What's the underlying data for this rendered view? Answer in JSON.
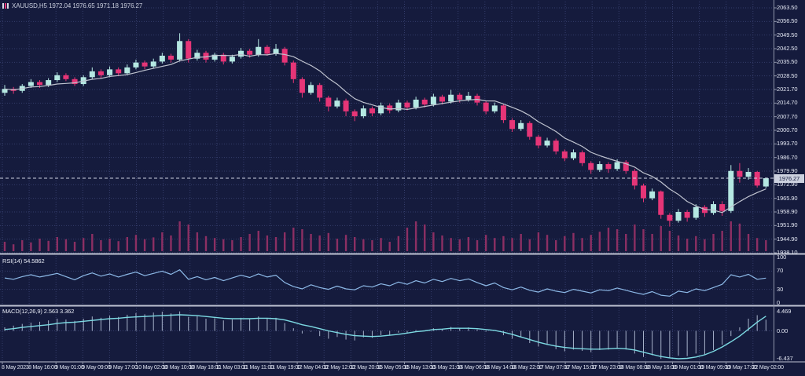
{
  "window": {
    "title": "XAUUSD,H5  1972.04 1976.65 1971.18 1976.27"
  },
  "indicators": {
    "rsi_label": "RSI(14) 54.5862",
    "macd_label": "MACD(12,26,9) 2.563 3.362"
  },
  "price_axis": {
    "ticks": [
      "2063.50",
      "2056.50",
      "2049.50",
      "2042.50",
      "2035.50",
      "2028.50",
      "2021.70",
      "2014.70",
      "2007.70",
      "2000.70",
      "1993.70",
      "1986.70",
      "1979.90",
      "1972.90",
      "1965.90",
      "1958.90",
      "1951.90",
      "1944.90",
      "1938.10"
    ],
    "current_price": "1976.27"
  },
  "time_axis": {
    "ticks": [
      "8 May 2023",
      "8 May 16:00",
      "9 May 01:00",
      "9 May 09:00",
      "9 May 17:00",
      "10 May 02:00",
      "10 May 10:00",
      "10 May 18:00",
      "11 May 03:00",
      "11 May 11:00",
      "11 May 19:00",
      "12 May 04:00",
      "12 May 12:00",
      "12 May 20:00",
      "15 May 05:00",
      "15 May 13:00",
      "15 May 21:00",
      "16 May 06:00",
      "16 May 14:00",
      "16 May 22:00",
      "17 May 07:00",
      "17 May 15:00",
      "17 May 23:00",
      "18 May 08:00",
      "18 May 16:00",
      "19 May 01:00",
      "19 May 09:00",
      "19 May 17:00",
      "22 May 02:00"
    ]
  },
  "rsi_axis": {
    "ticks": [
      "100",
      "70",
      "30",
      "0"
    ]
  },
  "macd_axis": {
    "ticks": [
      "4.469",
      "0.00",
      "-6.437"
    ]
  },
  "colors": {
    "background": "#151b3d",
    "grid": "#343c6a",
    "bull": "#b5e8e2",
    "bear": "#e63577",
    "ma_line": "#bfc3cf",
    "volume": "#8c2f63",
    "rsi_line": "#8cb8e6",
    "macd_histogram": "#a7b2ca",
    "macd_signal": "#7cd9e2",
    "separator": "#bfc3d2",
    "axis_text": "#e2e6f2",
    "axis_line": "#8f95aa",
    "price_badge_bg": "#ccd1df",
    "current_price_line": "#cdd2e0"
  },
  "chart_data": {
    "type": "candlestick",
    "symbol": "XAUUSD",
    "timeframe": "H5",
    "title": "XAUUSD,H5",
    "last_candle": {
      "open": 1972.04,
      "high": 1976.65,
      "low": 1971.18,
      "close": 1976.27
    },
    "ylim": [
      1938.1,
      2063.5
    ],
    "grid": true,
    "x_labels": [
      "8 May 2023",
      "8 May 16:00",
      "9 May 01:00",
      "9 May 09:00",
      "9 May 17:00",
      "10 May 02:00",
      "10 May 10:00",
      "10 May 18:00",
      "11 May 03:00",
      "11 May 11:00",
      "11 May 19:00",
      "12 May 04:00",
      "12 May 12:00",
      "12 May 20:00",
      "15 May 05:00",
      "15 May 13:00",
      "15 May 21:00",
      "16 May 06:00",
      "16 May 14:00",
      "16 May 22:00",
      "17 May 07:00",
      "17 May 15:00",
      "17 May 23:00",
      "18 May 08:00",
      "18 May 16:00",
      "19 May 01:00",
      "19 May 09:00",
      "19 May 17:00",
      "22 May 02:00"
    ],
    "ma_period": 8,
    "candles_ohlc": [
      [
        2020.0,
        2024.0,
        2018.5,
        2022.0
      ],
      [
        2022.0,
        2023.0,
        2019.5,
        2021.0
      ],
      [
        2021.0,
        2024.5,
        2020.0,
        2023.5
      ],
      [
        2023.5,
        2027.0,
        2022.5,
        2025.5
      ],
      [
        2025.5,
        2026.5,
        2022.5,
        2024.0
      ],
      [
        2024.0,
        2027.5,
        2023.0,
        2026.5
      ],
      [
        2026.5,
        2030.5,
        2025.5,
        2029.0
      ],
      [
        2029.0,
        2030.0,
        2026.0,
        2027.0
      ],
      [
        2027.0,
        2028.0,
        2023.5,
        2024.5
      ],
      [
        2024.5,
        2029.0,
        2023.5,
        2028.0
      ],
      [
        2028.0,
        2033.0,
        2027.0,
        2031.0
      ],
      [
        2031.0,
        2032.0,
        2027.5,
        2029.0
      ],
      [
        2029.0,
        2033.5,
        2028.0,
        2032.0
      ],
      [
        2032.0,
        2033.0,
        2028.5,
        2030.0
      ],
      [
        2030.0,
        2034.5,
        2029.0,
        2033.0
      ],
      [
        2033.0,
        2037.0,
        2032.0,
        2035.5
      ],
      [
        2035.5,
        2036.5,
        2032.0,
        2033.5
      ],
      [
        2033.5,
        2037.5,
        2032.5,
        2036.0
      ],
      [
        2036.0,
        2040.5,
        2035.0,
        2039.0
      ],
      [
        2039.0,
        2040.0,
        2035.5,
        2037.0
      ],
      [
        2037.0,
        2050.5,
        2036.0,
        2046.5
      ],
      [
        2046.5,
        2047.5,
        2035.5,
        2037.5
      ],
      [
        2037.5,
        2042.0,
        2036.5,
        2040.5
      ],
      [
        2040.5,
        2041.5,
        2035.5,
        2037.0
      ],
      [
        2037.0,
        2040.5,
        2036.0,
        2039.5
      ],
      [
        2039.5,
        2040.5,
        2034.5,
        2036.0
      ],
      [
        2036.0,
        2039.5,
        2035.0,
        2038.5
      ],
      [
        2038.5,
        2043.0,
        2037.5,
        2041.5
      ],
      [
        2041.5,
        2042.5,
        2038.0,
        2039.5
      ],
      [
        2039.5,
        2047.5,
        2038.5,
        2043.5
      ],
      [
        2043.5,
        2044.5,
        2039.0,
        2040.0
      ],
      [
        2040.0,
        2045.0,
        2039.0,
        2042.5
      ],
      [
        2042.5,
        2043.5,
        2034.0,
        2035.5
      ],
      [
        2035.5,
        2036.5,
        2025.0,
        2027.0
      ],
      [
        2027.0,
        2028.0,
        2017.5,
        2020.0
      ],
      [
        2020.0,
        2025.5,
        2019.0,
        2024.0
      ],
      [
        2024.0,
        2025.0,
        2015.5,
        2017.5
      ],
      [
        2017.5,
        2018.5,
        2010.5,
        2013.0
      ],
      [
        2013.0,
        2017.5,
        2012.0,
        2016.0
      ],
      [
        2016.0,
        2017.0,
        2008.0,
        2010.5
      ],
      [
        2010.5,
        2011.5,
        2005.5,
        2008.0
      ],
      [
        2008.0,
        2013.5,
        2007.0,
        2012.0
      ],
      [
        2012.0,
        2013.0,
        2008.0,
        2009.5
      ],
      [
        2009.5,
        2015.0,
        2008.5,
        2013.5
      ],
      [
        2013.5,
        2014.5,
        2009.5,
        2011.0
      ],
      [
        2011.0,
        2016.5,
        2010.0,
        2015.0
      ],
      [
        2015.0,
        2016.0,
        2011.0,
        2012.5
      ],
      [
        2012.5,
        2018.0,
        2011.5,
        2016.5
      ],
      [
        2016.5,
        2017.5,
        2012.5,
        2014.0
      ],
      [
        2014.0,
        2019.5,
        2013.0,
        2018.0
      ],
      [
        2018.0,
        2019.0,
        2014.0,
        2015.5
      ],
      [
        2015.5,
        2021.5,
        2014.5,
        2019.0
      ],
      [
        2019.0,
        2020.0,
        2015.0,
        2016.5
      ],
      [
        2016.5,
        2020.5,
        2015.5,
        2018.5
      ],
      [
        2018.5,
        2019.5,
        2013.5,
        2015.0
      ],
      [
        2015.0,
        2016.0,
        2009.0,
        2010.5
      ],
      [
        2010.5,
        2015.0,
        2009.5,
        2013.5
      ],
      [
        2013.5,
        2014.5,
        2004.5,
        2006.0
      ],
      [
        2006.0,
        2007.0,
        2000.0,
        2001.5
      ],
      [
        2001.5,
        2006.0,
        2000.5,
        2004.5
      ],
      [
        2004.5,
        2005.5,
        1996.0,
        1997.5
      ],
      [
        1997.5,
        1998.5,
        1991.5,
        1993.0
      ],
      [
        1993.0,
        1997.0,
        1992.0,
        1995.5
      ],
      [
        1995.5,
        1996.5,
        1988.5,
        1990.0
      ],
      [
        1990.0,
        1991.0,
        1985.0,
        1986.5
      ],
      [
        1986.5,
        1991.0,
        1985.5,
        1989.5
      ],
      [
        1989.5,
        1990.5,
        1982.5,
        1984.0
      ],
      [
        1984.0,
        1985.0,
        1978.5,
        1980.5
      ],
      [
        1980.5,
        1985.0,
        1979.5,
        1983.5
      ],
      [
        1983.5,
        1984.5,
        1979.0,
        1981.0
      ],
      [
        1981.0,
        1986.0,
        1980.0,
        1984.5
      ],
      [
        1984.5,
        1985.5,
        1978.5,
        1980.0
      ],
      [
        1980.0,
        1981.0,
        1970.5,
        1972.5
      ],
      [
        1972.5,
        1973.5,
        1964.0,
        1966.0
      ],
      [
        1966.0,
        1971.0,
        1965.0,
        1969.5
      ],
      [
        1969.5,
        1970.0,
        1955.5,
        1957.5
      ],
      [
        1957.5,
        1958.5,
        1951.5,
        1954.5
      ],
      [
        1954.5,
        1960.5,
        1953.5,
        1959.0
      ],
      [
        1959.0,
        1960.0,
        1954.0,
        1956.0
      ],
      [
        1956.0,
        1963.0,
        1955.0,
        1961.5
      ],
      [
        1961.5,
        1962.5,
        1956.5,
        1958.5
      ],
      [
        1958.5,
        1964.5,
        1957.5,
        1963.0
      ],
      [
        1963.0,
        1964.5,
        1957.0,
        1959.5
      ],
      [
        1959.5,
        1983.0,
        1958.5,
        1980.0
      ],
      [
        1980.0,
        1984.0,
        1974.0,
        1977.0
      ],
      [
        1977.0,
        1981.5,
        1975.5,
        1979.5
      ],
      [
        1979.5,
        1980.0,
        1971.5,
        1972.5
      ],
      [
        1972.04,
        1976.65,
        1971.18,
        1976.27
      ]
    ],
    "volume": [
      0.3,
      0.22,
      0.35,
      0.28,
      0.4,
      0.33,
      0.45,
      0.38,
      0.3,
      0.42,
      0.55,
      0.35,
      0.4,
      0.32,
      0.45,
      0.52,
      0.38,
      0.44,
      0.6,
      0.5,
      0.95,
      0.85,
      0.6,
      0.48,
      0.42,
      0.38,
      0.35,
      0.45,
      0.55,
      0.65,
      0.5,
      0.45,
      0.6,
      0.75,
      0.7,
      0.55,
      0.5,
      0.58,
      0.4,
      0.52,
      0.45,
      0.38,
      0.35,
      0.42,
      0.3,
      0.48,
      0.75,
      0.95,
      0.85,
      0.6,
      0.5,
      0.42,
      0.38,
      0.45,
      0.35,
      0.52,
      0.42,
      0.48,
      0.42,
      0.55,
      0.38,
      0.6,
      0.52,
      0.35,
      0.48,
      0.58,
      0.42,
      0.52,
      0.62,
      0.75,
      0.7,
      0.55,
      0.85,
      0.7,
      0.55,
      0.8,
      0.65,
      0.5,
      0.4,
      0.48,
      0.38,
      0.55,
      0.65,
      0.95,
      0.88,
      0.55,
      0.42,
      0.35
    ],
    "rsi": {
      "period": 14,
      "current": 54.5862,
      "levels": [
        70,
        30
      ],
      "range": [
        0,
        100
      ],
      "values": [
        55,
        52,
        58,
        62,
        57,
        61,
        65,
        58,
        51,
        60,
        66,
        59,
        64,
        57,
        63,
        68,
        60,
        65,
        70,
        63,
        73,
        52,
        58,
        51,
        56,
        49,
        55,
        61,
        56,
        64,
        57,
        61,
        45,
        36,
        31,
        40,
        34,
        30,
        37,
        31,
        29,
        38,
        35,
        42,
        38,
        46,
        41,
        49,
        44,
        52,
        47,
        54,
        49,
        53,
        45,
        38,
        44,
        34,
        29,
        35,
        28,
        24,
        31,
        26,
        23,
        30,
        26,
        22,
        29,
        27,
        33,
        28,
        23,
        19,
        25,
        17,
        15,
        26,
        23,
        31,
        27,
        34,
        41,
        62,
        57,
        63,
        52,
        54.59
      ]
    },
    "macd": {
      "fast": 12,
      "slow": 26,
      "signal_period": 9,
      "current_macd": 2.563,
      "current_signal": 3.362,
      "scale_max": 4.469,
      "scale_min": -6.437,
      "histogram": [
        0.8,
        1.2,
        1.6,
        1.9,
        2.1,
        2.4,
        2.8,
        2.6,
        2.3,
        2.8,
        3.3,
        3.0,
        3.5,
        3.2,
        3.7,
        4.1,
        3.8,
        4.2,
        4.4,
        4.0,
        4.469,
        3.2,
        3.4,
        2.8,
        2.9,
        2.4,
        2.6,
        3.0,
        2.8,
        3.3,
        2.9,
        3.0,
        1.8,
        0.6,
        -0.6,
        -0.2,
        -1.2,
        -1.8,
        -1.4,
        -2.0,
        -2.2,
        -1.5,
        -1.6,
        -1.0,
        -1.1,
        -0.4,
        -0.6,
        0.2,
        0.0,
        0.6,
        0.4,
        0.9,
        0.7,
        0.8,
        0.3,
        -0.2,
        0.0,
        -1.0,
        -1.8,
        -1.4,
        -2.8,
        -3.6,
        -3.2,
        -4.2,
        -4.7,
        -4.3,
        -4.6,
        -4.9,
        -4.4,
        -4.3,
        -3.9,
        -4.3,
        -5.2,
        -6.0,
        -5.6,
        -6.437,
        -6.3,
        -5.7,
        -5.8,
        -5.2,
        -5.4,
        -4.4,
        -3.2,
        -1.2,
        0.8,
        2.8,
        3.6,
        2.563
      ],
      "signal": [
        0.3,
        0.5,
        0.8,
        1.0,
        1.2,
        1.4,
        1.7,
        1.9,
        2.0,
        2.2,
        2.4,
        2.6,
        2.8,
        2.9,
        3.1,
        3.2,
        3.3,
        3.4,
        3.5,
        3.6,
        3.7,
        3.6,
        3.5,
        3.3,
        3.1,
        2.9,
        2.8,
        2.8,
        2.8,
        2.9,
        2.9,
        2.8,
        2.5,
        2.0,
        1.4,
        1.0,
        0.5,
        0.0,
        -0.4,
        -0.8,
        -1.1,
        -1.2,
        -1.3,
        -1.2,
        -1.0,
        -0.8,
        -0.5,
        -0.2,
        0.0,
        0.3,
        0.4,
        0.6,
        0.6,
        0.6,
        0.5,
        0.3,
        0.1,
        -0.3,
        -0.8,
        -1.4,
        -2.0,
        -2.6,
        -3.1,
        -3.5,
        -3.8,
        -4.0,
        -4.1,
        -4.2,
        -4.2,
        -4.1,
        -4.0,
        -4.1,
        -4.4,
        -4.9,
        -5.4,
        -5.9,
        -6.2,
        -6.4,
        -6.3,
        -6.0,
        -5.5,
        -4.7,
        -3.7,
        -2.5,
        -1.2,
        0.4,
        2.0,
        3.362
      ]
    }
  }
}
